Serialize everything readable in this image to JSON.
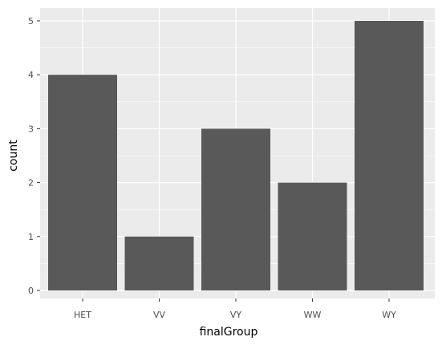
{
  "chart_data": {
    "type": "bar",
    "title": "",
    "xlabel": "finalGroup",
    "ylabel": "count",
    "categories": [
      "HET",
      "VV",
      "VY",
      "WW",
      "WY"
    ],
    "values": [
      4,
      1,
      3,
      2,
      5
    ],
    "ylim": [
      0,
      5
    ],
    "yticks": [
      0,
      1,
      2,
      3,
      4,
      5
    ],
    "grid": true,
    "colors": {
      "panel_background": "#ebebeb",
      "grid_major": "#ffffff",
      "bar_fill": "#595959",
      "tick_text": "#4d4d4d",
      "tick_mark": "#333333",
      "axis_title": "#000000"
    }
  }
}
